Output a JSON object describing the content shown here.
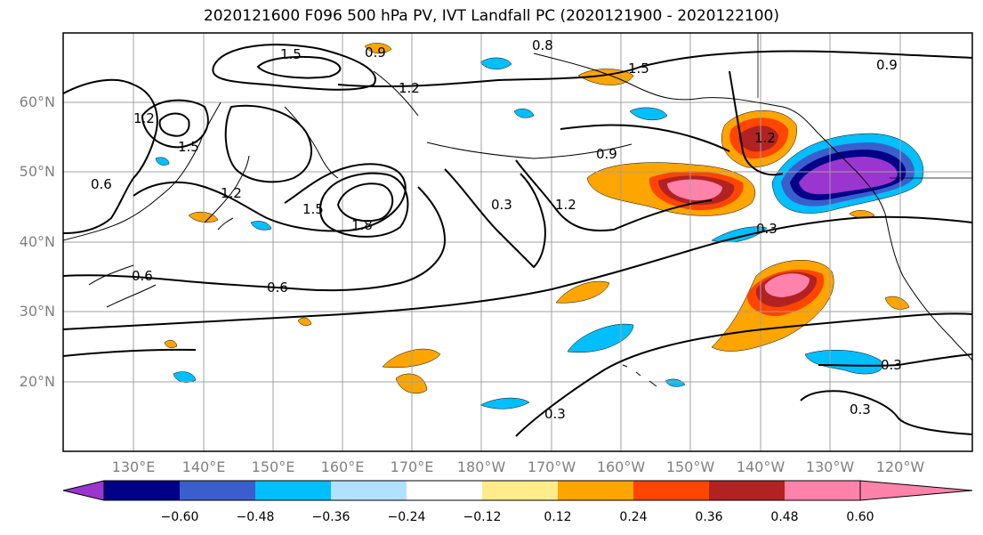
{
  "title": "2020121600 F096 500 hPa PV, IVT Landfall PC (2020121900 - 2020122100)",
  "lat_labels": [
    "60°N",
    "50°N",
    "40°N",
    "30°N",
    "20°N"
  ],
  "lon_labels": [
    "130°E",
    "140°E",
    "150°E",
    "160°E",
    "170°E",
    "180°W",
    "170°W",
    "160°W",
    "150°W",
    "140°W",
    "130°W",
    "120°W"
  ],
  "contour_labels": [
    "1.5",
    "0.9",
    "0.8",
    "1.5",
    "0.9",
    "1.2",
    "1.2",
    "1.5",
    "0.9",
    "0.6",
    "1.2",
    "1.5",
    "1.8",
    "0.3",
    "1.2",
    "1.2",
    "0.3",
    "0.6",
    "0.6",
    "0.3",
    "0.3",
    "0.3"
  ],
  "colorbar": {
    "tick_labels": [
      "−0.60",
      "−0.48",
      "−0.36",
      "−0.24",
      "−0.12",
      "0.12",
      "0.24",
      "0.36",
      "0.48",
      "0.60"
    ],
    "colors": [
      "#9a35d0",
      "#000088",
      "#3a5fcd",
      "#00bfff",
      "#b0e2ff",
      "#ffffff",
      "#ffec8b",
      "#ffa500",
      "#ff4500",
      "#b22222",
      "#ff82ab"
    ]
  }
}
